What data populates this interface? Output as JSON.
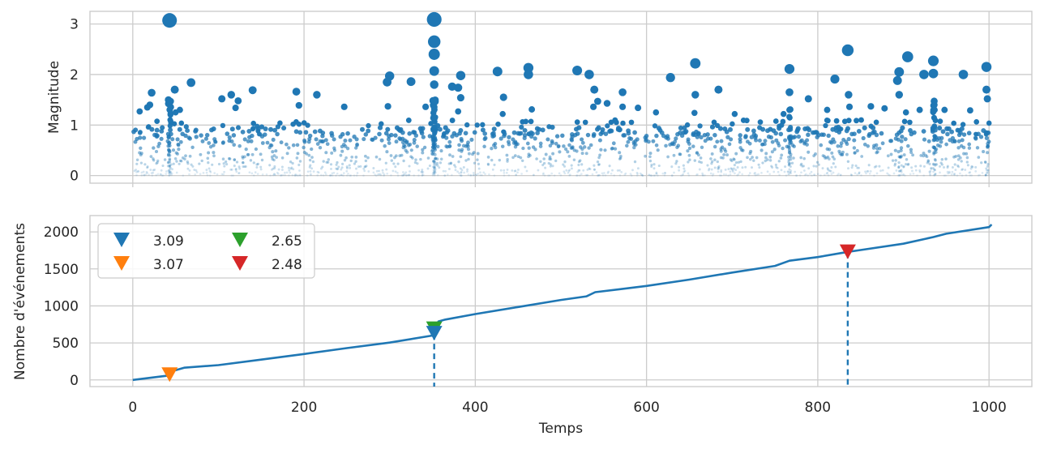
{
  "chart_data": [
    {
      "type": "scatter",
      "title": "",
      "xlabel": "",
      "ylabel": "Magnitude",
      "xlim": [
        -50,
        1050
      ],
      "ylim": [
        -0.15,
        3.25
      ],
      "x_ticks": [
        0,
        200,
        400,
        600,
        800,
        1000
      ],
      "y_ticks": [
        0,
        1,
        2,
        3
      ],
      "grid": true,
      "point_color": "#1f77b4",
      "size_encodes": "magnitude",
      "opacity_encodes": "magnitude",
      "prominent_points": [
        {
          "x": 43,
          "y": 3.07
        },
        {
          "x": 352,
          "y": 3.09
        },
        {
          "x": 352,
          "y": 2.65
        },
        {
          "x": 835,
          "y": 2.48
        },
        {
          "x": 352,
          "y": 2.4
        },
        {
          "x": 905,
          "y": 2.35
        },
        {
          "x": 935,
          "y": 2.27
        },
        {
          "x": 657,
          "y": 2.22
        },
        {
          "x": 997,
          "y": 2.15
        },
        {
          "x": 462,
          "y": 2.13
        },
        {
          "x": 767,
          "y": 2.11
        },
        {
          "x": 519,
          "y": 2.08
        },
        {
          "x": 352,
          "y": 2.07
        },
        {
          "x": 895,
          "y": 2.05
        },
        {
          "x": 426,
          "y": 2.06
        },
        {
          "x": 533,
          "y": 2.0
        },
        {
          "x": 924,
          "y": 2.0
        },
        {
          "x": 935,
          "y": 2.02
        },
        {
          "x": 970,
          "y": 2.0
        },
        {
          "x": 383,
          "y": 1.98
        },
        {
          "x": 300,
          "y": 1.97
        },
        {
          "x": 462,
          "y": 2.0
        },
        {
          "x": 628,
          "y": 1.94
        },
        {
          "x": 820,
          "y": 1.91
        },
        {
          "x": 297,
          "y": 1.85
        },
        {
          "x": 325,
          "y": 1.86
        },
        {
          "x": 68,
          "y": 1.84
        },
        {
          "x": 893,
          "y": 1.88
        },
        {
          "x": 352,
          "y": 1.8
        },
        {
          "x": 373,
          "y": 1.76
        },
        {
          "x": 380,
          "y": 1.74
        },
        {
          "x": 49,
          "y": 1.7
        },
        {
          "x": 140,
          "y": 1.69
        },
        {
          "x": 684,
          "y": 1.7
        },
        {
          "x": 997,
          "y": 1.7
        },
        {
          "x": 191,
          "y": 1.66
        },
        {
          "x": 22,
          "y": 1.64
        },
        {
          "x": 539,
          "y": 1.7
        },
        {
          "x": 572,
          "y": 1.65
        },
        {
          "x": 767,
          "y": 1.65
        },
        {
          "x": 115,
          "y": 1.6
        },
        {
          "x": 215,
          "y": 1.6
        },
        {
          "x": 836,
          "y": 1.6
        },
        {
          "x": 657,
          "y": 1.6
        },
        {
          "x": 895,
          "y": 1.6
        },
        {
          "x": 383,
          "y": 1.54
        },
        {
          "x": 433,
          "y": 1.55
        },
        {
          "x": 789,
          "y": 1.52
        },
        {
          "x": 998,
          "y": 1.52
        },
        {
          "x": 104,
          "y": 1.52
        },
        {
          "x": 123,
          "y": 1.48
        },
        {
          "x": 44,
          "y": 1.47
        },
        {
          "x": 543,
          "y": 1.47
        },
        {
          "x": 554,
          "y": 1.43
        },
        {
          "x": 20,
          "y": 1.4
        },
        {
          "x": 17,
          "y": 1.35
        },
        {
          "x": 120,
          "y": 1.34
        },
        {
          "x": 194,
          "y": 1.39
        },
        {
          "x": 247,
          "y": 1.36
        },
        {
          "x": 298,
          "y": 1.37
        },
        {
          "x": 342,
          "y": 1.36
        },
        {
          "x": 466,
          "y": 1.31
        },
        {
          "x": 538,
          "y": 1.36
        },
        {
          "x": 572,
          "y": 1.36
        },
        {
          "x": 590,
          "y": 1.34
        },
        {
          "x": 767,
          "y": 1.3
        },
        {
          "x": 811,
          "y": 1.3
        },
        {
          "x": 837,
          "y": 1.36
        },
        {
          "x": 862,
          "y": 1.37
        },
        {
          "x": 878,
          "y": 1.33
        },
        {
          "x": 936,
          "y": 1.4
        },
        {
          "x": 948,
          "y": 1.3
        },
        {
          "x": 978,
          "y": 1.29
        },
        {
          "x": 8,
          "y": 1.27
        },
        {
          "x": 50,
          "y": 1.25
        },
        {
          "x": 55,
          "y": 1.3
        },
        {
          "x": 380,
          "y": 1.27
        },
        {
          "x": 432,
          "y": 1.22
        },
        {
          "x": 611,
          "y": 1.25
        },
        {
          "x": 656,
          "y": 1.24
        },
        {
          "x": 703,
          "y": 1.22
        },
        {
          "x": 760,
          "y": 1.22
        },
        {
          "x": 903,
          "y": 1.25
        },
        {
          "x": 919,
          "y": 1.3
        }
      ],
      "note_points": "approximately 2000 events spread uniformly over 0–1000, most with magnitude below 1"
    },
    {
      "type": "line",
      "title": "",
      "xlabel": "Temps",
      "ylabel": "Nombre d'événements",
      "xlim": [
        -50,
        1050
      ],
      "ylim": [
        -90,
        2220
      ],
      "x_ticks": [
        0,
        200,
        400,
        600,
        800,
        1000
      ],
      "y_ticks": [
        0,
        500,
        1000,
        1500,
        2000
      ],
      "grid": true,
      "line_color": "#1f77b4",
      "cumulative_points": [
        {
          "x": 0,
          "y": 0
        },
        {
          "x": 42,
          "y": 60
        },
        {
          "x": 44,
          "y": 85
        },
        {
          "x": 48,
          "y": 125
        },
        {
          "x": 60,
          "y": 165
        },
        {
          "x": 100,
          "y": 200
        },
        {
          "x": 150,
          "y": 275
        },
        {
          "x": 200,
          "y": 350
        },
        {
          "x": 250,
          "y": 430
        },
        {
          "x": 300,
          "y": 505
        },
        {
          "x": 350,
          "y": 600
        },
        {
          "x": 352,
          "y": 660
        },
        {
          "x": 354,
          "y": 730
        },
        {
          "x": 357,
          "y": 790
        },
        {
          "x": 365,
          "y": 815
        },
        {
          "x": 400,
          "y": 890
        },
        {
          "x": 450,
          "y": 985
        },
        {
          "x": 500,
          "y": 1080
        },
        {
          "x": 530,
          "y": 1130
        },
        {
          "x": 540,
          "y": 1185
        },
        {
          "x": 600,
          "y": 1270
        },
        {
          "x": 650,
          "y": 1355
        },
        {
          "x": 700,
          "y": 1450
        },
        {
          "x": 750,
          "y": 1540
        },
        {
          "x": 767,
          "y": 1610
        },
        {
          "x": 800,
          "y": 1660
        },
        {
          "x": 835,
          "y": 1730
        },
        {
          "x": 850,
          "y": 1755
        },
        {
          "x": 900,
          "y": 1840
        },
        {
          "x": 935,
          "y": 1930
        },
        {
          "x": 950,
          "y": 1975
        },
        {
          "x": 1000,
          "y": 2065
        },
        {
          "x": 1003,
          "y": 2100
        }
      ],
      "markers": [
        {
          "label": "3.09",
          "x": 352,
          "y": 620,
          "color": "#1f77b4",
          "dashed_drop": true
        },
        {
          "label": "3.07",
          "x": 43,
          "y": 60,
          "color": "#ff7f0e",
          "dashed_drop": false
        },
        {
          "label": "2.65",
          "x": 352,
          "y": 680,
          "color": "#2ca02c",
          "dashed_drop": false
        },
        {
          "label": "2.48",
          "x": 835,
          "y": 1720,
          "color": "#d62728",
          "dashed_drop": true
        }
      ],
      "legend": {
        "placement": "top-left",
        "columns": 2,
        "entries": [
          "3.09",
          "3.07",
          "2.65",
          "2.48"
        ]
      }
    }
  ]
}
